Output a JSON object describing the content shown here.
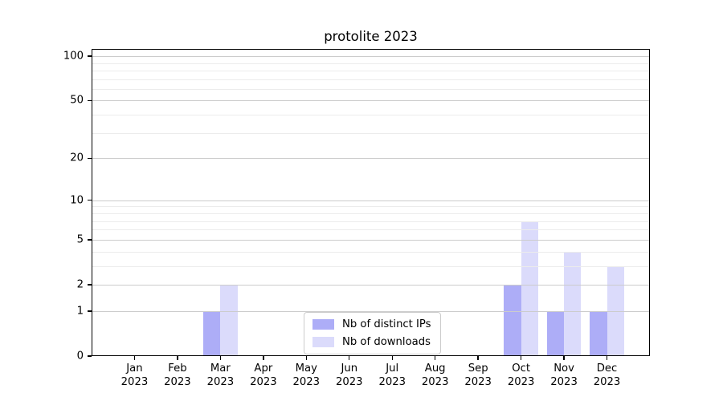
{
  "title": "protolite 2023",
  "chart_data": {
    "type": "bar",
    "title": "protolite 2023",
    "xlabel": "",
    "ylabel": "",
    "categories": [
      "Jan 2023",
      "Feb 2023",
      "Mar 2023",
      "Apr 2023",
      "May 2023",
      "Jun 2023",
      "Jul 2023",
      "Aug 2023",
      "Sep 2023",
      "Oct 2023",
      "Nov 2023",
      "Dec 2023"
    ],
    "series": [
      {
        "name": "Nb of distinct IPs",
        "color": "rgba(122,122,242,0.62)",
        "color_hex": "#acacf7",
        "values": [
          0,
          0,
          1,
          0,
          0,
          0,
          0,
          0,
          0,
          2,
          1,
          1
        ]
      },
      {
        "name": "Nb of downloads",
        "color": "rgba(122,122,242,0.27)",
        "color_hex": "#dbdbf5",
        "values": [
          0,
          0,
          2,
          0,
          0,
          0,
          0,
          0,
          0,
          7,
          4,
          3
        ]
      }
    ],
    "yscale": "log1p",
    "ylim": [
      0,
      112
    ],
    "y_major_ticks": [
      0,
      1,
      2,
      5,
      10,
      20,
      50,
      100
    ],
    "y_minor_gridlines": [
      3,
      4,
      6,
      7,
      8,
      9,
      30,
      40,
      60,
      70,
      80,
      90
    ],
    "grid": true,
    "gridlines_above_bars": true,
    "legend_position": "lower center"
  },
  "legend": {
    "items": [
      {
        "label": "Nb of distinct IPs"
      },
      {
        "label": "Nb of downloads"
      }
    ]
  }
}
